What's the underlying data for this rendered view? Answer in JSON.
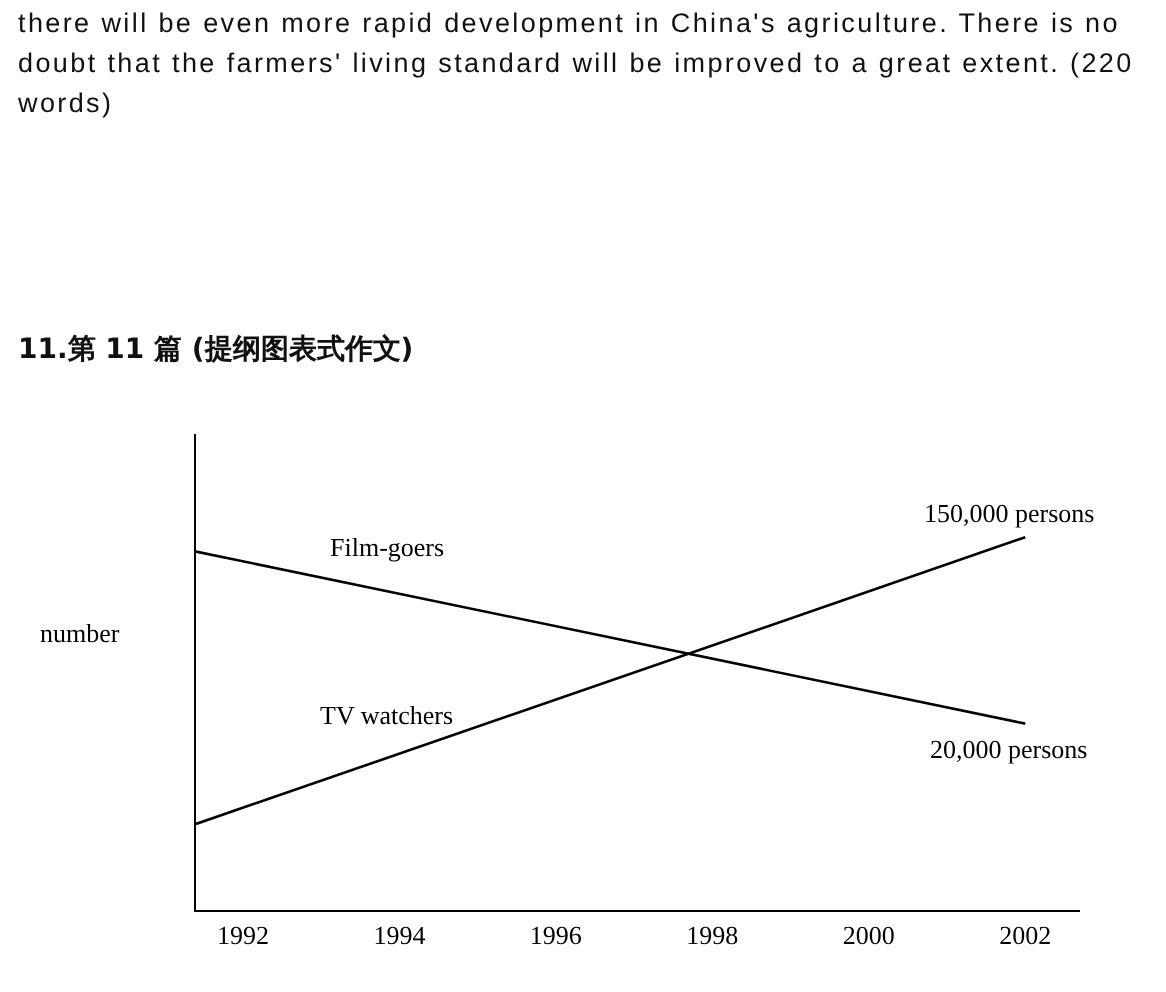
{
  "chart_data": {
    "type": "line",
    "title": "11.第 11 篇  (提纲图表式作文)",
    "annotations": [
      "there will be even more rapid development in China's agriculture. There is no doubt that the farmers' living standard will be improved to a great extent. (220 words)"
    ],
    "ylabel": "number",
    "grid": false,
    "legend": false,
    "marker": "none",
    "line_style": "solid",
    "xlim": [
      1991.4,
      2002.7
    ],
    "xticks": [
      1992,
      1994,
      1996,
      1998,
      2000,
      2002
    ],
    "ylim": [
      -110000,
      222000
    ],
    "x": [
      1991.4,
      2002
    ],
    "tick_labels": "x",
    "series": [
      {
        "name": "Film-goers",
        "color": "#000000",
        "values": [
          140000,
          20000
        ],
        "value_labels": [
          null,
          "20,000 persons"
        ]
      },
      {
        "name": "TV watchers",
        "color": "#000000",
        "values": [
          -50000,
          150000
        ],
        "value_labels": [
          null,
          "150,000 persons"
        ]
      }
    ]
  }
}
